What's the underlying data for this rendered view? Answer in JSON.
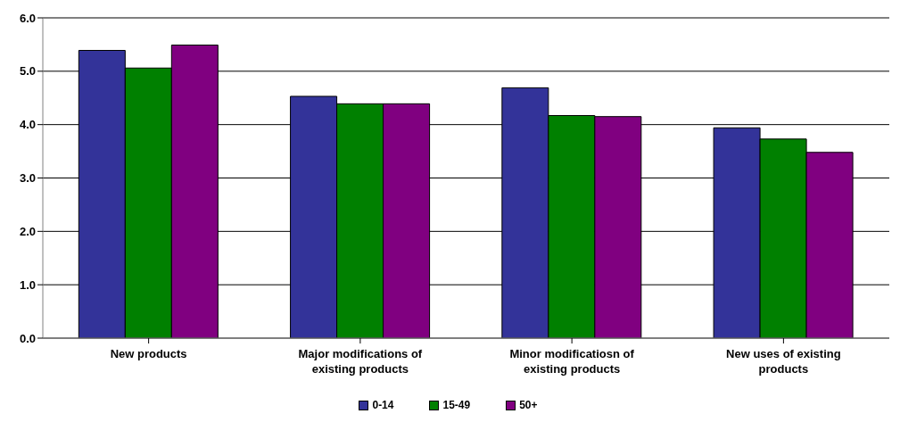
{
  "chart_data": {
    "type": "bar",
    "categories": [
      "New products",
      "Major modifications of existing products",
      "Minor modificatiosn of existing products",
      "New uses of existing products"
    ],
    "series": [
      {
        "name": "0-14",
        "color": "#333399",
        "values": [
          5.39,
          4.53,
          4.69,
          3.94
        ]
      },
      {
        "name": "15-49",
        "color": "#008000",
        "values": [
          5.06,
          4.39,
          4.17,
          3.73
        ]
      },
      {
        "name": "50+",
        "color": "#800080",
        "values": [
          5.49,
          4.39,
          4.15,
          3.48
        ]
      }
    ],
    "ylim": [
      0,
      6
    ],
    "yticks": [
      {
        "value": 0,
        "label": "0.0"
      },
      {
        "value": 1,
        "label": "1.0"
      },
      {
        "value": 2,
        "label": "2.0"
      },
      {
        "value": 3,
        "label": "3.0"
      },
      {
        "value": 4,
        "label": "4.0"
      },
      {
        "value": 5,
        "label": "5.0"
      },
      {
        "value": 6,
        "label": "6.0"
      }
    ],
    "grid": "y",
    "legend": "bottom"
  }
}
